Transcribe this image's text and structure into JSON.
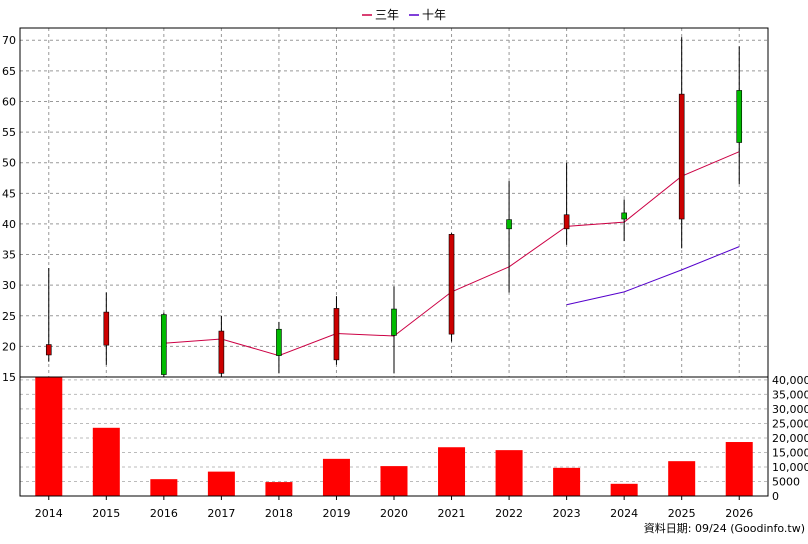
{
  "chart_data": {
    "type": "candlestick",
    "legend": [
      {
        "label": "三年",
        "color": "#cc0044"
      },
      {
        "label": "十年",
        "color": "#5500cc"
      }
    ],
    "legend_position": "top-center",
    "x": [
      "2014",
      "2015",
      "2016",
      "2017",
      "2018",
      "2019",
      "2020",
      "2021",
      "2022",
      "2023",
      "2024",
      "2025",
      "2026"
    ],
    "price_axis": {
      "range": [
        15,
        72
      ],
      "ticks": [
        15,
        20,
        25,
        30,
        35,
        40,
        45,
        50,
        55,
        60,
        65,
        70
      ]
    },
    "candles": [
      {
        "year": "2014",
        "open": 20.3,
        "high": 32.8,
        "low": 17.5,
        "close": 18.6
      },
      {
        "year": "2015",
        "open": 25.6,
        "high": 28.8,
        "low": 17.0,
        "close": 20.2
      },
      {
        "year": "2016",
        "open": 15.4,
        "high": 25.5,
        "low": 15.0,
        "close": 25.2
      },
      {
        "year": "2017",
        "open": 22.5,
        "high": 25.0,
        "low": 15.0,
        "close": 15.6
      },
      {
        "year": "2018",
        "open": 18.5,
        "high": 24.0,
        "low": 15.6,
        "close": 22.8
      },
      {
        "year": "2019",
        "open": 26.2,
        "high": 28.2,
        "low": 17.0,
        "close": 17.8
      },
      {
        "year": "2020",
        "open": 21.8,
        "high": 29.8,
        "low": 15.6,
        "close": 26.1
      },
      {
        "year": "2021",
        "open": 38.3,
        "high": 38.5,
        "low": 20.8,
        "close": 22.0
      },
      {
        "year": "2022",
        "open": 39.2,
        "high": 47.0,
        "low": 28.8,
        "close": 40.7
      },
      {
        "year": "2023",
        "open": 41.5,
        "high": 50.0,
        "low": 36.6,
        "close": 39.2
      },
      {
        "year": "2024",
        "open": 40.8,
        "high": 44.0,
        "low": 37.2,
        "close": 41.8
      },
      {
        "year": "2025",
        "open": 61.2,
        "high": 70.5,
        "low": 36.0,
        "close": 40.8
      },
      {
        "year": "2026",
        "open": 53.3,
        "high": 69.0,
        "low": 46.5,
        "close": 61.8
      }
    ],
    "candle_colors": {
      "up": "#00bb00",
      "down": "#cc0000"
    },
    "series": [
      {
        "name": "三年",
        "color": "#cc0044",
        "values": [
          null,
          null,
          20.5,
          21.2,
          18.5,
          22.1,
          21.7,
          28.9,
          33.0,
          39.6,
          40.3,
          47.8,
          51.8
        ]
      },
      {
        "name": "十年",
        "color": "#5500cc",
        "values": [
          null,
          null,
          null,
          null,
          null,
          null,
          null,
          null,
          null,
          26.8,
          28.9,
          32.5,
          36.3
        ]
      }
    ],
    "volume_axis": {
      "range": [
        0,
        41000
      ],
      "ticks": [
        "0",
        "5000",
        "10,000",
        "15,000",
        "20,000",
        "25,000",
        "30,000",
        "35,000",
        "40,000"
      ],
      "tick_values": [
        0,
        5000,
        10000,
        15000,
        20000,
        25000,
        30000,
        35000,
        40000
      ]
    },
    "volume": [
      41000,
      23500,
      5800,
      8400,
      4800,
      12800,
      10300,
      16800,
      15800,
      9700,
      4200,
      12000,
      18600
    ],
    "volume_color": "#ff0000",
    "grid": true
  },
  "footer": {
    "source": "資料日期: 09/24  (Goodinfo.tw)"
  }
}
